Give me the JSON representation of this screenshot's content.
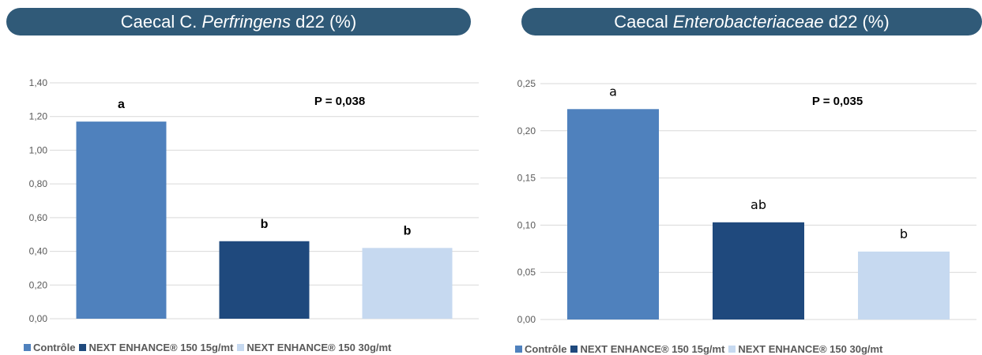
{
  "colors": {
    "title_bg": "#305a78",
    "series": [
      "#4f81bd",
      "#1f497d",
      "#c6d9f0"
    ],
    "grid": "#d9d9d9",
    "tick": "#595959"
  },
  "chart_data": [
    {
      "type": "bar",
      "title": {
        "pre": "Caecal C. ",
        "italic": "Perfringens",
        "post": " d22 (%)"
      },
      "xlabel": "",
      "ylabel": "",
      "categories": [
        "Contrôle",
        "NEXT ENHANCE® 150 15g/mt",
        "NEXT ENHANCE® 150 30g/mt"
      ],
      "values": [
        1.17,
        0.46,
        0.42
      ],
      "letters": [
        "a",
        "b",
        "b"
      ],
      "letters_bold": true,
      "annotation": "P = 0,038",
      "ylim": [
        0,
        1.4
      ],
      "yticks": [
        "0,00",
        "0,20",
        "0,40",
        "0,60",
        "0,80",
        "1,00",
        "1,20",
        "1,40"
      ],
      "grid": true,
      "legend_position": "bottom"
    },
    {
      "type": "bar",
      "title": {
        "pre": "Caecal ",
        "italic": "Enterobacteriaceae",
        "post": " d22 (%)"
      },
      "xlabel": "",
      "ylabel": "",
      "categories": [
        "Contrôle",
        "NEXT ENHANCE® 150 15g/mt",
        "NEXT ENHANCE® 150 30g/mt"
      ],
      "values": [
        0.223,
        0.103,
        0.072
      ],
      "letters": [
        "a",
        "ab",
        "b"
      ],
      "letters_bold": false,
      "annotation": "P = 0,035",
      "ylim": [
        0,
        0.25
      ],
      "yticks": [
        "0,00",
        "0,05",
        "0,10",
        "0,15",
        "0,20",
        "0,25"
      ],
      "grid": true,
      "legend_position": "bottom"
    }
  ]
}
